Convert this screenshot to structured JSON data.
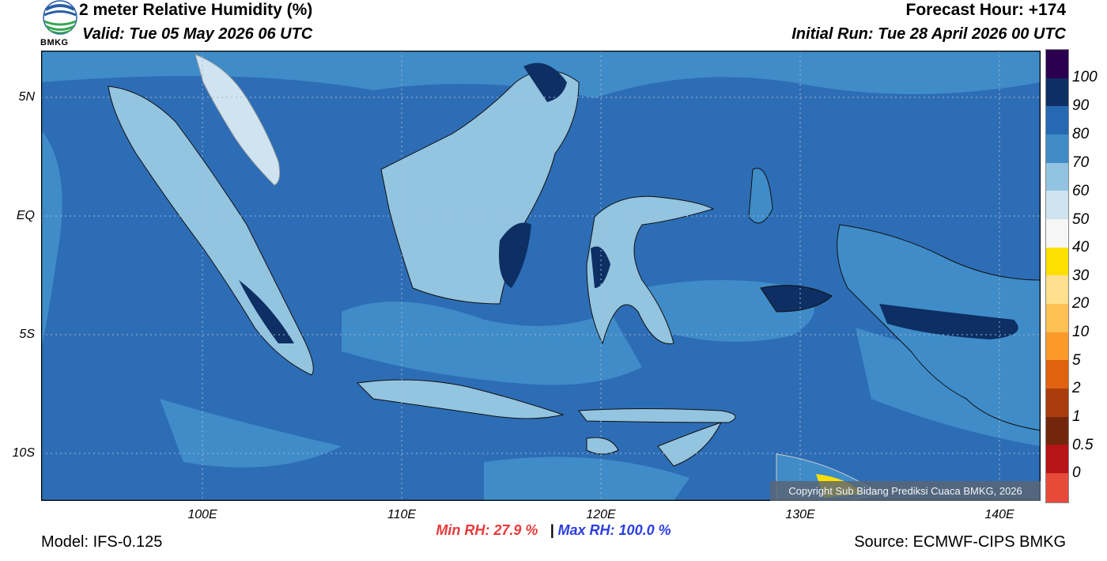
{
  "header": {
    "title": "2 meter Relative Humidity (%)",
    "valid": "Valid: Tue 05 May 2026 06 UTC",
    "forecast_hour": "Forecast Hour: +174",
    "initial_run": "Initial Run: Tue 28 April 2026 00 UTC"
  },
  "logo": {
    "text": "BMKG",
    "icon": "bmkg-logo-icon"
  },
  "map": {
    "lat_labels": [
      "5N",
      "EQ",
      "5S",
      "10S"
    ],
    "lon_labels": [
      "100E",
      "110E",
      "120E",
      "130E",
      "140E"
    ],
    "copyright": "Copyright Sub Bidang Prediksi Cuaca BMKG, 2026",
    "sea_color": "#2d6db5",
    "land_color": "#93c4e0"
  },
  "colorbar": {
    "labels": [
      "100",
      "90",
      "80",
      "70",
      "60",
      "50",
      "40",
      "30",
      "20",
      "10",
      "5",
      "2",
      "1",
      "0.5",
      "0"
    ],
    "colors": [
      "#2b0050",
      "#0d2f63",
      "#2669b2",
      "#3f8cc8",
      "#92c4e1",
      "#cfe4f0",
      "#f6f6f6",
      "#fde000",
      "#ffe08e",
      "#fdc052",
      "#fb9a29",
      "#e0620e",
      "#a93d0c",
      "#72260c",
      "#b81417",
      "#e84a3a"
    ]
  },
  "stats": {
    "min_rh": "Min RH:  27.9 %",
    "separator": "|",
    "max_rh": "Max RH: 100.0 %"
  },
  "footer": {
    "model": "Model: IFS-0.125",
    "source": "Source: ECMWF-CIPS BMKG"
  }
}
